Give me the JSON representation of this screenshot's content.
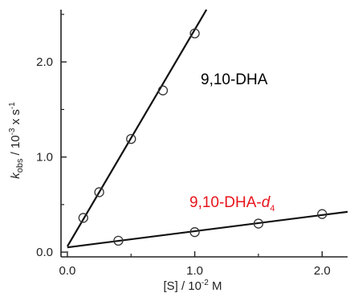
{
  "chart_data": {
    "type": "scatter",
    "xlabel": {
      "prefix": "[S] / 10",
      "exp": "-2",
      "suffix": " M"
    },
    "ylabel": {
      "main": "k",
      "sub": "obs",
      "mid": " / 10",
      "exp": "-3",
      "suffix": " x s",
      "exp2": "-1"
    },
    "xlim": [
      -0.05,
      2.2
    ],
    "ylim": [
      -0.05,
      2.55
    ],
    "x_ticks": [
      0.0,
      1.0,
      2.0
    ],
    "x_tick_labels": [
      "0.0",
      "1.0",
      "2.0"
    ],
    "y_ticks": [
      0.0,
      1.0,
      2.0
    ],
    "y_tick_labels": [
      "0.0",
      "1.0",
      "2.0"
    ],
    "grid": false,
    "series": [
      {
        "name": "9,10-DHA",
        "label_sub": "",
        "color": "#000000",
        "x": [
          0.125,
          0.25,
          0.5,
          0.75,
          1.0
        ],
        "y": [
          0.36,
          0.63,
          1.19,
          1.7,
          2.3
        ],
        "fit": {
          "slope": 2.28,
          "intercept": 0.06
        }
      },
      {
        "name": "9,10-DHA-",
        "label_sub": "4",
        "label_italic": "d",
        "color": "#e8141c",
        "x": [
          0.4,
          1.0,
          1.5,
          2.0
        ],
        "y": [
          0.12,
          0.21,
          0.3,
          0.4
        ],
        "fit": {
          "slope": 0.17,
          "intercept": 0.05
        }
      }
    ]
  }
}
